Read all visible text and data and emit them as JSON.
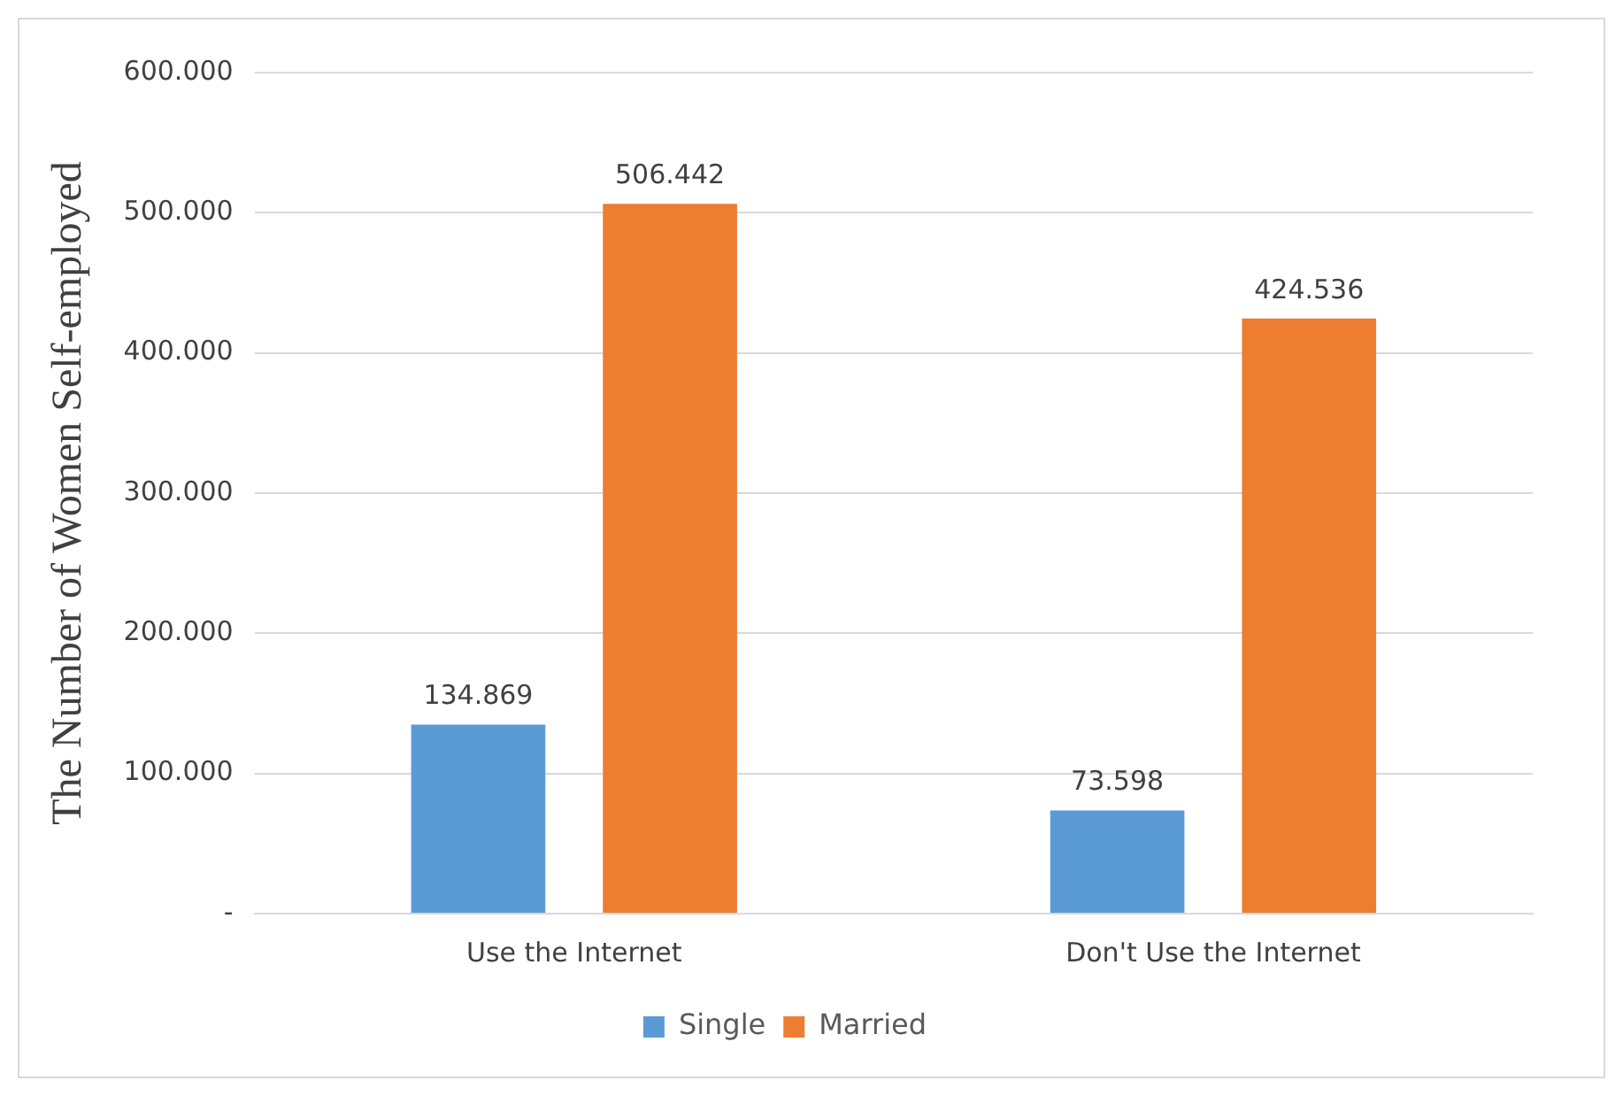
{
  "chart_data": {
    "type": "bar",
    "ylabel": "The Number of Women Self-employed",
    "categories": [
      "Use the Internet",
      "Don't Use the Internet"
    ],
    "series": [
      {
        "name": "Single",
        "color": "#5b9bd5",
        "values": [
          134869,
          73598
        ],
        "value_labels": [
          "134.869",
          "73.598"
        ]
      },
      {
        "name": "Married",
        "color": "#ed7d31",
        "values": [
          506442,
          424536
        ],
        "value_labels": [
          "506.442",
          "424.536"
        ]
      }
    ],
    "ylim": [
      0,
      600000
    ],
    "yticks": [
      {
        "value": 0,
        "label": "-"
      },
      {
        "value": 100000,
        "label": "100.000"
      },
      {
        "value": 200000,
        "label": "200.000"
      },
      {
        "value": 300000,
        "label": "300.000"
      },
      {
        "value": 400000,
        "label": "400.000"
      },
      {
        "value": 500000,
        "label": "500.000"
      },
      {
        "value": 600000,
        "label": "600.000"
      }
    ],
    "grid": "y",
    "legend": "bottom"
  }
}
